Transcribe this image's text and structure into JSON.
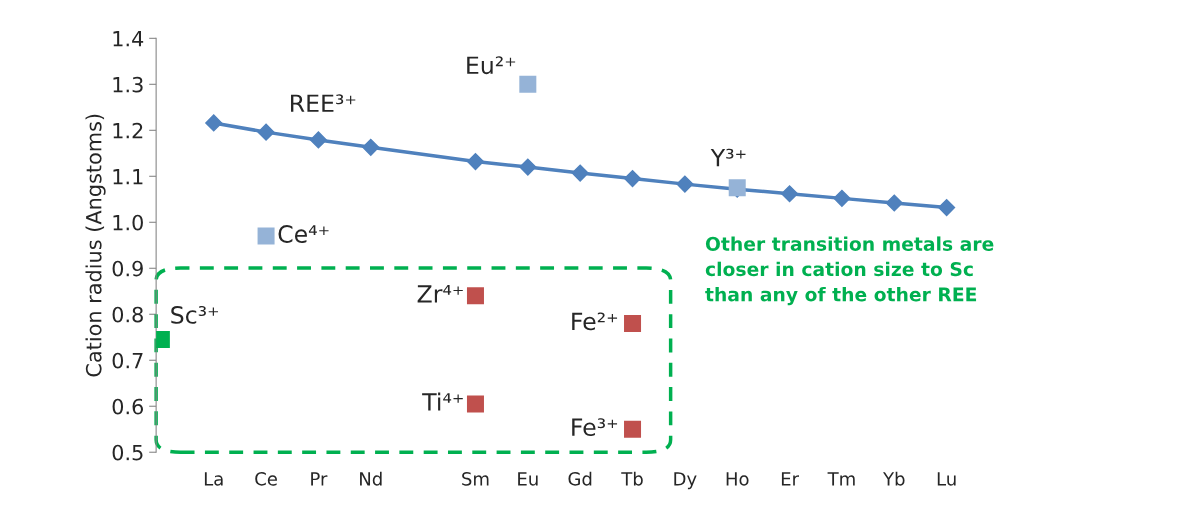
{
  "chart_data": {
    "type": "line",
    "ylabel": "Cation radius (Angstoms)",
    "categories": [
      null,
      "La",
      "Ce",
      "Pr",
      "Nd",
      null,
      "Sm",
      "Eu",
      "Gd",
      "Tb",
      "Dy",
      "Ho",
      "Er",
      "Tm",
      "Yb",
      "Lu"
    ],
    "series": [
      {
        "name": "REE³⁺",
        "marker": "diamond",
        "color": "#4f81bd",
        "values": [
          null,
          1.216,
          1.196,
          1.179,
          1.163,
          null,
          1.132,
          1.12,
          1.107,
          1.095,
          1.083,
          1.072,
          1.062,
          1.052,
          1.042,
          1.032
        ]
      },
      {
        "name": "Eu²⁺",
        "type": "scatter",
        "marker": "square",
        "color": "#95b3d7",
        "values": [
          null,
          null,
          null,
          null,
          null,
          null,
          null,
          1.3,
          null,
          null,
          null,
          null,
          null,
          null,
          null,
          null
        ]
      },
      {
        "name": "Y³⁺",
        "type": "scatter",
        "marker": "square",
        "color": "#95b3d7",
        "values": [
          null,
          null,
          null,
          null,
          null,
          null,
          null,
          null,
          null,
          null,
          null,
          1.075,
          null,
          null,
          null,
          null
        ]
      },
      {
        "name": "Ce⁴⁺",
        "type": "scatter",
        "marker": "square",
        "color": "#95b3d7",
        "values": [
          null,
          null,
          0.97,
          null,
          null,
          null,
          null,
          null,
          null,
          null,
          null,
          null,
          null,
          null,
          null,
          null
        ]
      },
      {
        "name": "Sc³⁺",
        "type": "scatter",
        "marker": "square",
        "color": "#00b050",
        "values": [
          0.745,
          null,
          null,
          null,
          null,
          null,
          null,
          null,
          null,
          null,
          null,
          null,
          null,
          null,
          null,
          null
        ]
      },
      {
        "name": "Zr⁴⁺",
        "type": "scatter",
        "marker": "square",
        "color": "#c0504d",
        "values": [
          null,
          null,
          null,
          null,
          null,
          null,
          0.84,
          null,
          null,
          null,
          null,
          null,
          null,
          null,
          null,
          null
        ]
      },
      {
        "name": "Ti⁴⁺",
        "type": "scatter",
        "marker": "square",
        "color": "#c0504d",
        "values": [
          null,
          null,
          null,
          null,
          null,
          null,
          0.605,
          null,
          null,
          null,
          null,
          null,
          null,
          null,
          null,
          null
        ]
      },
      {
        "name": "Fe²⁺",
        "type": "scatter",
        "marker": "square",
        "color": "#c0504d",
        "values": [
          null,
          null,
          null,
          null,
          null,
          null,
          null,
          null,
          null,
          0.78,
          null,
          null,
          null,
          null,
          null,
          null
        ]
      },
      {
        "name": "Fe³⁺",
        "type": "scatter",
        "marker": "square",
        "color": "#c0504d",
        "values": [
          null,
          null,
          null,
          null,
          null,
          null,
          null,
          null,
          null,
          0.55,
          null,
          null,
          null,
          null,
          null,
          null
        ]
      }
    ],
    "ylim": [
      0.5,
      1.4
    ],
    "yticks": [
      {
        "value": 0.5,
        "label": "0.5"
      },
      {
        "value": 0.6,
        "label": "0.6"
      },
      {
        "value": 0.7,
        "label": "0.7"
      },
      {
        "value": 0.8,
        "label": "0.8"
      },
      {
        "value": 0.9,
        "label": "0.9"
      },
      {
        "value": 1.0,
        "label": "1.0"
      },
      {
        "value": 1.1,
        "label": "1.1"
      },
      {
        "value": 1.2,
        "label": "1.2"
      },
      {
        "value": 1.3,
        "label": "1.3"
      },
      {
        "value": 1.4,
        "label": "1.4"
      }
    ],
    "grid": false,
    "legend": false,
    "annotations": [
      "Other transition metals are closer in cation size to Sc than any of the other REE"
    ]
  }
}
